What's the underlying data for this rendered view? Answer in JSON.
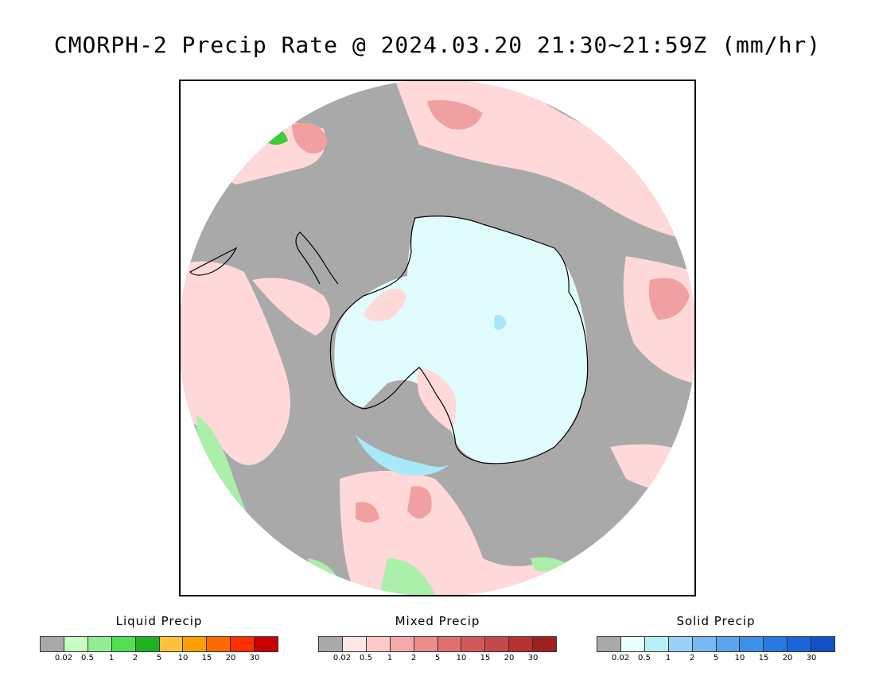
{
  "title": "CMORPH-2 Precip Rate @ 2024.03.20 21:30~21:59Z (mm/hr)",
  "map": {
    "projection": "south-polar-stereographic",
    "region": "Antarctica / Southern Ocean",
    "colors": {
      "no_precip": "#a9a9a9",
      "mixed_light": "#ffd9d9",
      "mixed_mid": "#f0a0a0",
      "mixed_heavy": "#e07070",
      "liquid_light": "#aaf0aa",
      "liquid_heavy": "#3ccc3c",
      "solid_light": "#e0fcfc",
      "solid_mid": "#a8e8f8",
      "coastline": "#000000"
    }
  },
  "legends": [
    {
      "title": "Liquid Precip",
      "colors": [
        "#a9a9a9",
        "#c7ffc0",
        "#90ee90",
        "#52e052",
        "#1fb21f",
        "#ffc040",
        "#ffa000",
        "#ff6a00",
        "#ff3000",
        "#c80000"
      ],
      "ticks": [
        "0.02",
        "0.5",
        "1",
        "2",
        "5",
        "10",
        "15",
        "20",
        "30"
      ]
    },
    {
      "title": "Mixed Precip",
      "colors": [
        "#a9a9a9",
        "#ffe6e6",
        "#ffc8c8",
        "#f4a8a8",
        "#ec8c8c",
        "#e07070",
        "#d45858",
        "#c84848",
        "#b83030",
        "#a02020"
      ],
      "ticks": [
        "0.02",
        "0.5",
        "1",
        "2",
        "5",
        "10",
        "15",
        "20",
        "30"
      ]
    },
    {
      "title": "Solid Precip",
      "colors": [
        "#a9a9a9",
        "#e6ffff",
        "#b8f0f8",
        "#9ad0f8",
        "#78b8f0",
        "#5aa4ee",
        "#3c90ec",
        "#2878e8",
        "#1c64dc",
        "#1450c8"
      ],
      "ticks": [
        "0.02",
        "0.5",
        "1",
        "2",
        "5",
        "10",
        "15",
        "20",
        "30"
      ]
    }
  ]
}
